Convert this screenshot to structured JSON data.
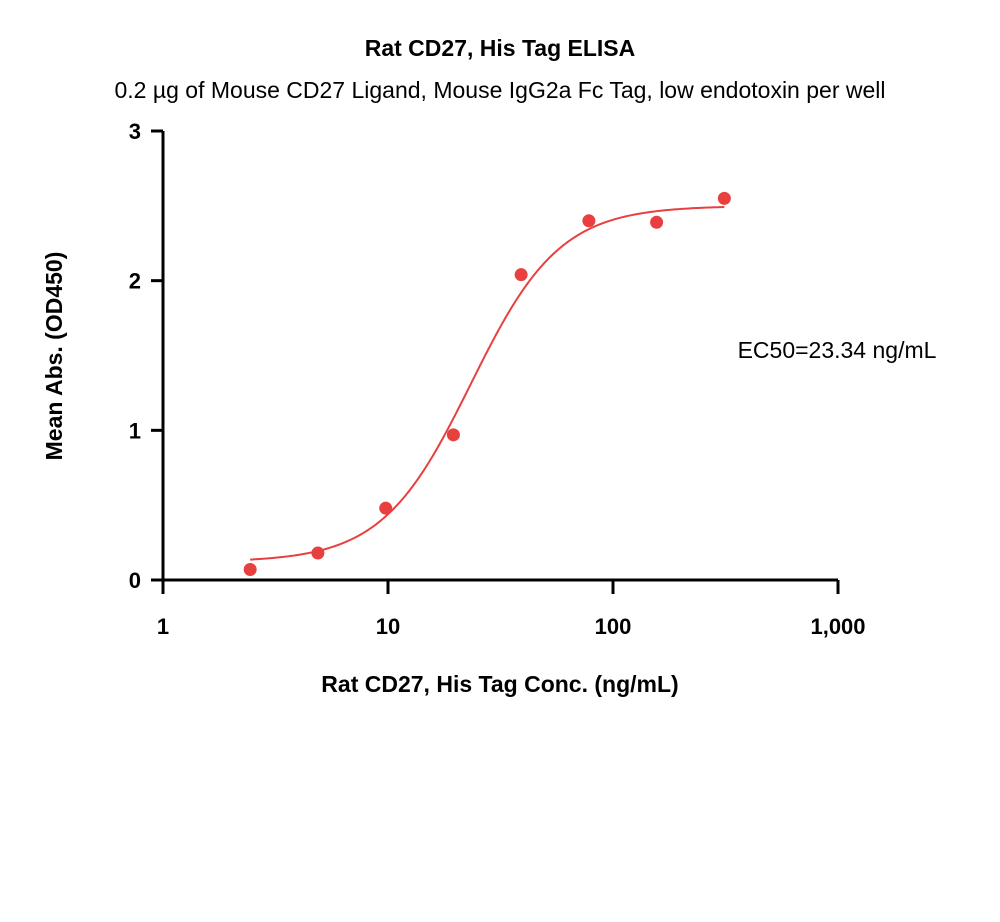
{
  "chart_data": {
    "type": "scatter",
    "title": "Rat CD27, His Tag ELISA",
    "subtitle": "0.2 µg of Mouse CD27 Ligand, Mouse IgG2a Fc Tag, low endotoxin per well",
    "xlabel": "Rat CD27, His Tag Conc. (ng/mL)",
    "ylabel": "Mean Abs. (OD450)",
    "x_scale": "log10",
    "xlim": [
      1,
      1000
    ],
    "ylim": [
      0,
      3
    ],
    "x_ticks": [
      {
        "value": 1,
        "label": "1"
      },
      {
        "value": 10,
        "label": "10"
      },
      {
        "value": 100,
        "label": "100"
      },
      {
        "value": 1000,
        "label": "1,000"
      }
    ],
    "y_ticks": [
      {
        "value": 0,
        "label": "0"
      },
      {
        "value": 1,
        "label": "1"
      },
      {
        "value": 2,
        "label": "2"
      },
      {
        "value": 3,
        "label": "3"
      }
    ],
    "series": [
      {
        "color": "#e8403f",
        "points": [
          {
            "x": 2.44,
            "y": 0.07
          },
          {
            "x": 4.88,
            "y": 0.18
          },
          {
            "x": 9.77,
            "y": 0.48
          },
          {
            "x": 19.53,
            "y": 0.97
          },
          {
            "x": 39.06,
            "y": 2.04
          },
          {
            "x": 78.13,
            "y": 2.4
          },
          {
            "x": 156.25,
            "y": 2.39
          },
          {
            "x": 312.5,
            "y": 2.55
          }
        ],
        "fit": {
          "model": "4PL",
          "bottom": 0.12,
          "top": 2.5,
          "ec50": 23.34,
          "hill": 2.2,
          "x_range": [
            2.44,
            312.5
          ]
        }
      }
    ],
    "annotation": "EC50=23.34 ng/mL",
    "grid": false,
    "legend": "none"
  }
}
